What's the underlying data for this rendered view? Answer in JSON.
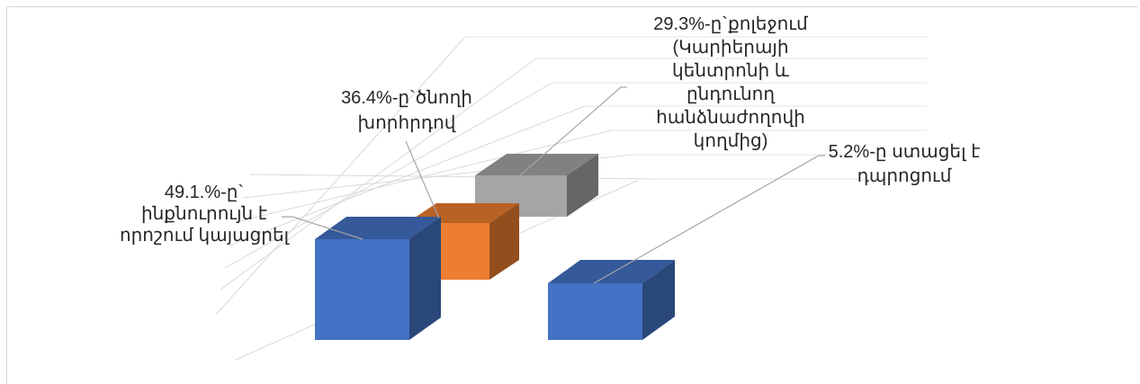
{
  "chart_data": {
    "type": "bar",
    "variant": "3d-column",
    "title": "",
    "xlabel": "",
    "ylabel": "",
    "grid": true,
    "legend": "none",
    "series": [
      {
        "values": [
          49.1,
          36.4,
          29.3,
          5.2
        ],
        "colors": [
          "#4472c4",
          "#ed7d31",
          "#a5a5a5",
          "#4472c4"
        ]
      }
    ],
    "data_labels": [
      [
        "49.1.%-ը`",
        "ինքնուրույն է",
        "որոշում կայացրել"
      ],
      [
        "36.4%-ը`ծնողի",
        "խորհրդով"
      ],
      [
        "29.3%-ը`քոլեջում",
        "(Կարիերայի",
        "կենտրոնի և",
        "ընդունող",
        "հանձնաժողովի",
        "կողմից)"
      ],
      [
        "5.2%-ը ստացել է",
        "դպրոցում"
      ]
    ]
  }
}
